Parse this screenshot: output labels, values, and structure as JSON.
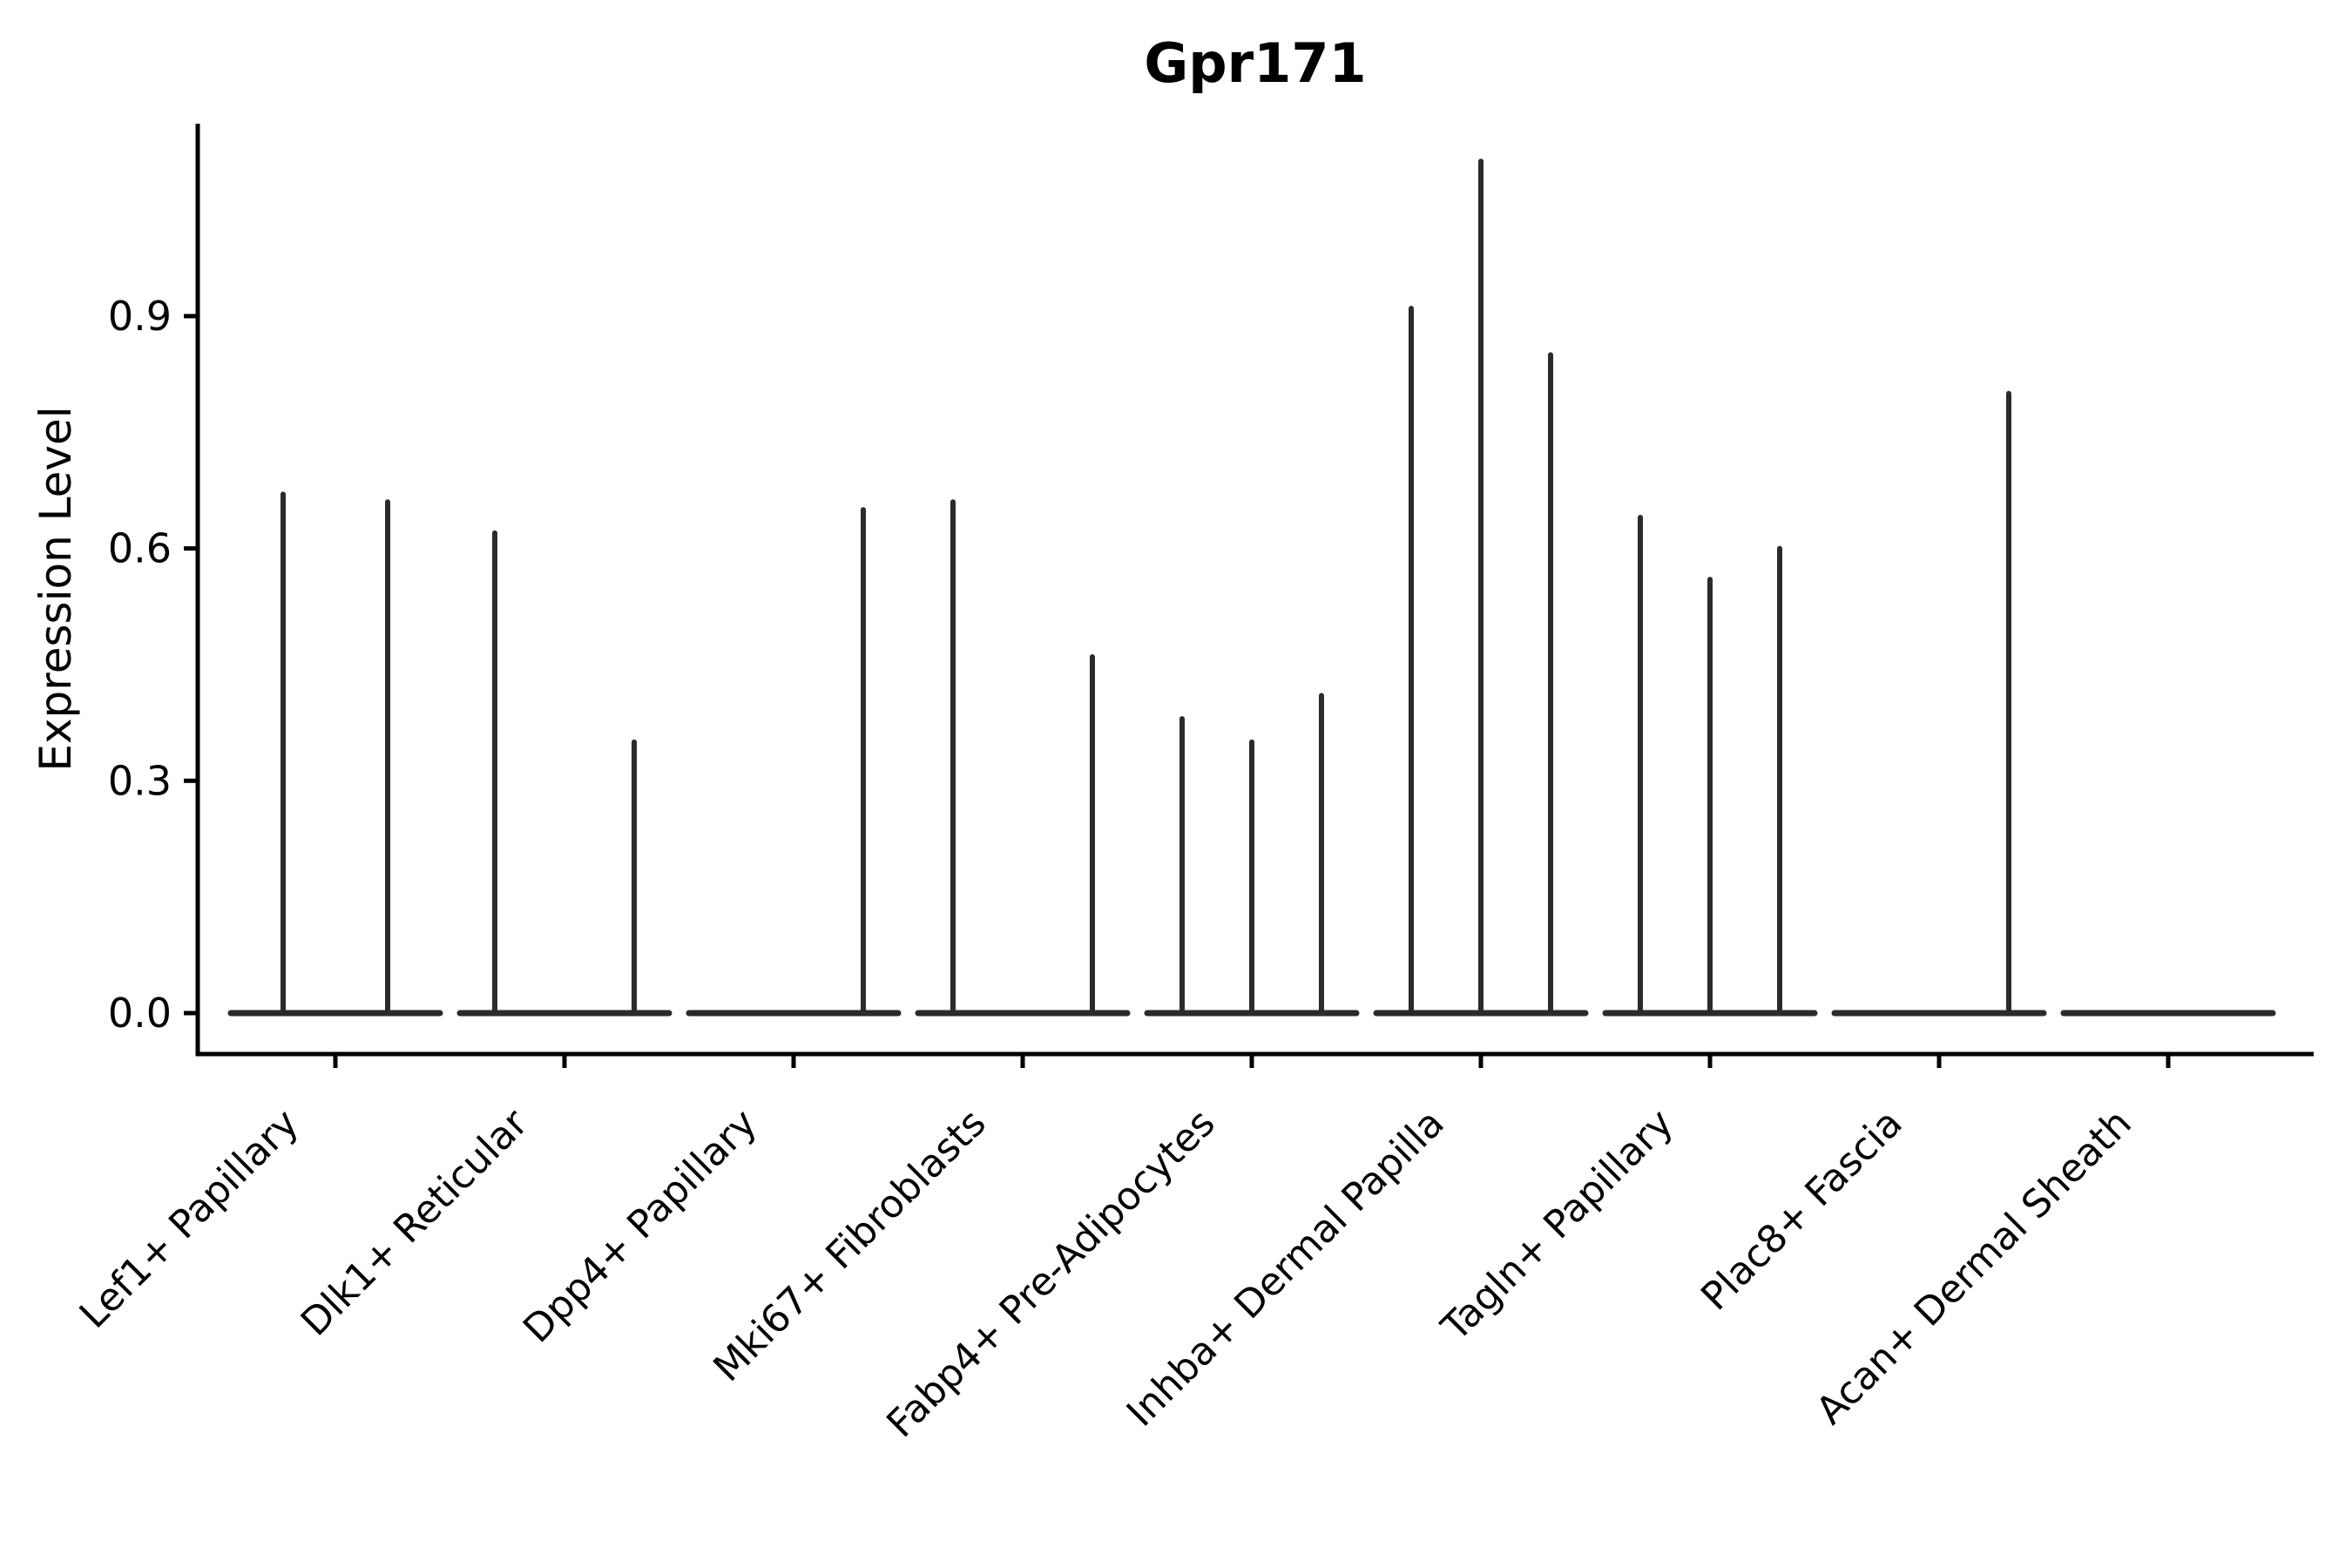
{
  "chart_data": {
    "type": "violin",
    "title": "Gpr171",
    "ylabel": "Expression Level",
    "xlabel": "",
    "ylim": [
      -0.05,
      1.15
    ],
    "yticks": [
      0,
      0.3,
      0.6,
      0.9
    ],
    "ytick_labels": [
      "0.0",
      "0.3",
      "0.6",
      "0.9"
    ],
    "grid": false,
    "legend": "none",
    "categories": [
      {
        "label": "Lef1+ Papillary",
        "slots": 2,
        "violins": [
          {
            "slot": 0,
            "max": 0.67
          },
          {
            "slot": 1,
            "max": 0.66
          }
        ]
      },
      {
        "label": "Dlk1+ Reticular",
        "slots": 3,
        "violins": [
          {
            "slot": 0,
            "max": 0.62
          },
          {
            "slot": 2,
            "max": 0.35
          }
        ]
      },
      {
        "label": "Dpp4+ Papillary",
        "slots": 3,
        "violins": [
          {
            "slot": 2,
            "max": 0.65
          }
        ]
      },
      {
        "label": "Mki67+ Fibroblasts",
        "slots": 3,
        "violins": [
          {
            "slot": 0,
            "max": 0.66
          },
          {
            "slot": 2,
            "max": 0.46
          }
        ]
      },
      {
        "label": "Fabp4+ Pre-Adipocytes",
        "slots": 3,
        "violins": [
          {
            "slot": 0,
            "max": 0.38
          },
          {
            "slot": 1,
            "max": 0.35
          },
          {
            "slot": 2,
            "max": 0.41
          }
        ]
      },
      {
        "label": "Inhba+ Dermal Papilla",
        "slots": 3,
        "violins": [
          {
            "slot": 0,
            "max": 0.91
          },
          {
            "slot": 1,
            "max": 1.1
          },
          {
            "slot": 2,
            "max": 0.85
          }
        ]
      },
      {
        "label": "Tagln+ Papillary",
        "slots": 3,
        "violins": [
          {
            "slot": 0,
            "max": 0.64
          },
          {
            "slot": 1,
            "max": 0.56
          },
          {
            "slot": 2,
            "max": 0.6
          }
        ]
      },
      {
        "label": "Plac8+ Fascia",
        "slots": 3,
        "violins": [
          {
            "slot": 2,
            "max": 0.8
          }
        ]
      },
      {
        "label": "Acan+ Dermal Sheath",
        "slots": 3,
        "violins": []
      }
    ],
    "colors": {
      "violin": "#2b2b2b",
      "axis": "#000000",
      "background": "#ffffff"
    }
  }
}
